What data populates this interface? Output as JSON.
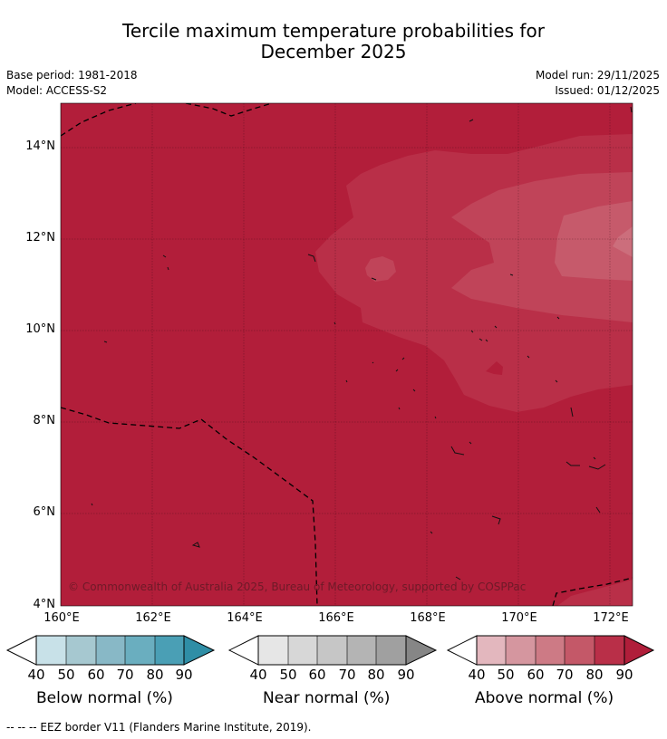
{
  "title_line1": "Tercile maximum temperature probabilities for",
  "title_line2": "December 2025",
  "base_period": "Base period: 1981-2018",
  "model": "Model: ACCESS-S2",
  "model_run": "Model run: 29/11/2025",
  "issued": "Issued: 01/12/2025",
  "copyright": "© Commonwealth of Australia 2025, Bureau of Meteorology, supported by COSPPac",
  "lat_ticks": [
    "14°N",
    "12°N",
    "10°N",
    "8°N",
    "6°N",
    "4°N"
  ],
  "lon_ticks": [
    "160°E",
    "162°E",
    "164°E",
    "166°E",
    "168°E",
    "170°E",
    "172°E"
  ],
  "colorbars": [
    {
      "title": "Below normal (%)",
      "labels": [
        "40",
        "50",
        "60",
        "70",
        "80",
        "90"
      ],
      "colors": [
        "#c8e1e8",
        "#a6c8d0",
        "#88b8c6",
        "#6aaebf",
        "#4a9fb5",
        "#2f8ea6"
      ]
    },
    {
      "title": "Near normal (%)",
      "labels": [
        "40",
        "50",
        "60",
        "70",
        "80",
        "90"
      ],
      "colors": [
        "#e6e6e6",
        "#d7d7d7",
        "#c6c6c6",
        "#b4b4b4",
        "#a0a0a0",
        "#868686"
      ]
    },
    {
      "title": "Above normal (%)",
      "labels": [
        "40",
        "50",
        "60",
        "70",
        "80",
        "90"
      ],
      "colors": [
        "#e3b7be",
        "#d5969f",
        "#cd7a85",
        "#c45868",
        "#b92f48",
        "#b01e3a"
      ]
    }
  ],
  "footer": "--  --  -- EEZ border V11 (Flanders Marine Institute, 2019).",
  "map_colors": {
    "c90": "#b21e3a",
    "c80": "#b92f48",
    "c70": "#c04459",
    "c60": "#c65a6b",
    "c50": "#cc6e7c",
    "c40": "#d68c97"
  }
}
